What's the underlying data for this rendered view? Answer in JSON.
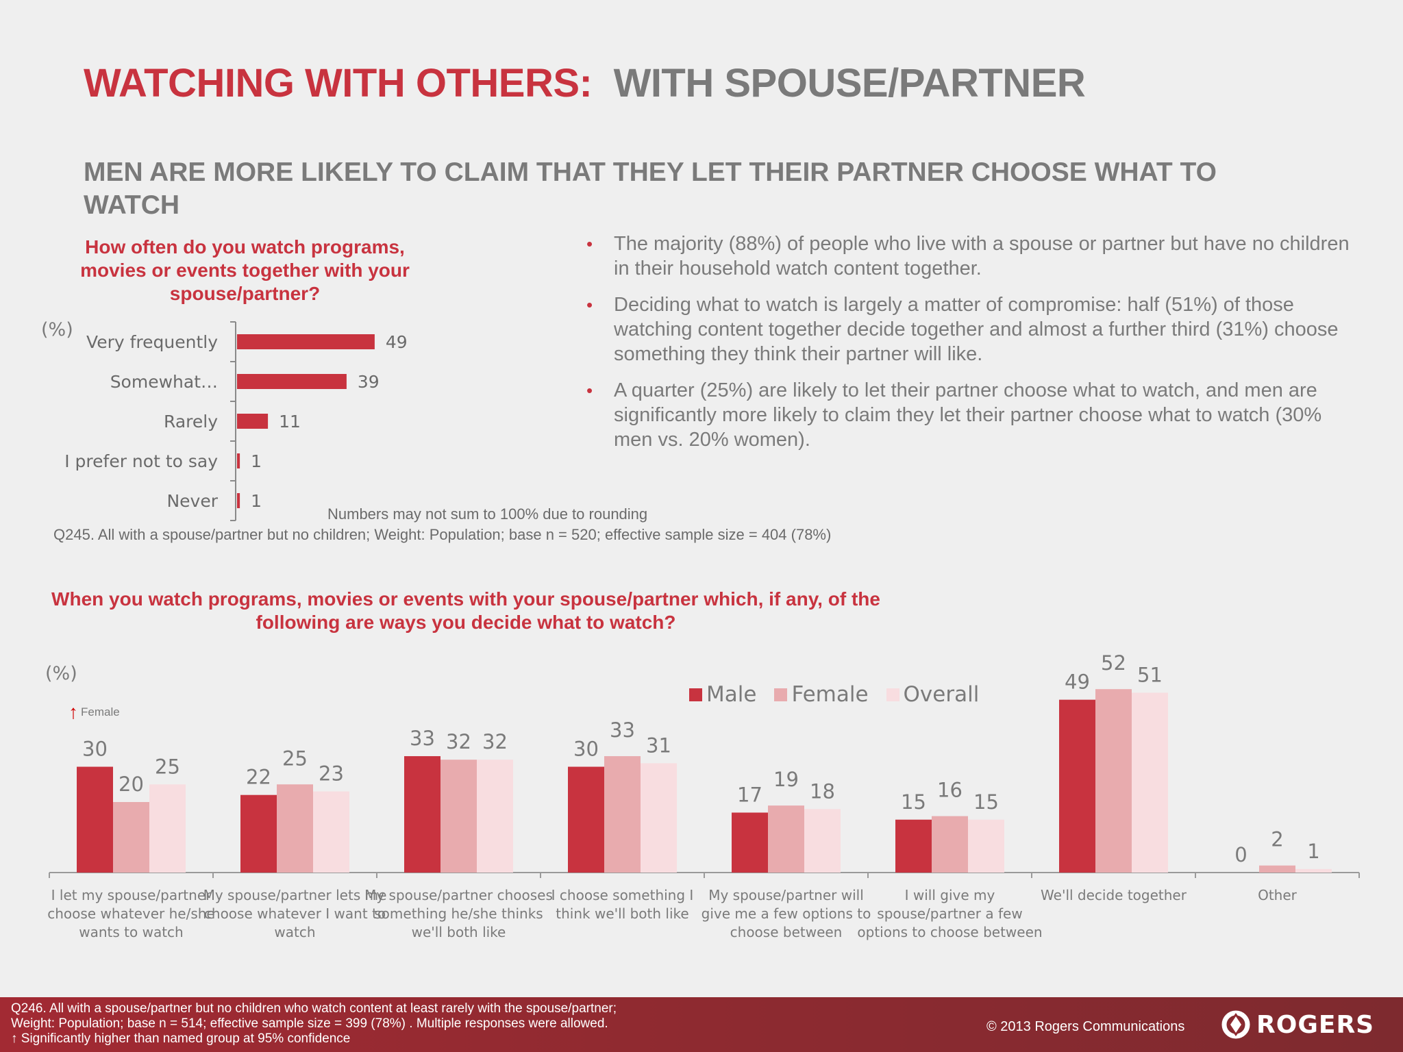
{
  "title": {
    "part1": "WATCHING WITH OTHERS:",
    "part2": "WITH SPOUSE/PARTNER"
  },
  "subtitle": "MEN ARE MORE LIKELY TO CLAIM THAT THEY LET THEIR PARTNER CHOOSE WHAT TO WATCH",
  "colors": {
    "brand_red": "#c8333f",
    "male": "#c8333f",
    "female": "#e8abae",
    "overall": "#f8dde0"
  },
  "chart1": {
    "question": "How often do you watch programs, movies or events together with your spouse/partner?",
    "unit_label": "(%)",
    "note": "Numbers may not sum to 100% due to rounding",
    "source": "Q245. All with a spouse/partner but no children; Weight: Population; base n = 520; effective sample size = 404 (78%)"
  },
  "bullets": [
    "The majority (88%) of people who live with a spouse or partner but have no children in their household watch content together.",
    "Deciding what to watch is largely a matter of compromise: half (51%) of those watching content together decide together and almost a further third (31%) choose something they think their partner will like.",
    "A quarter (25%) are likely to let their partner choose what to watch, and men are significantly more likely to claim they let their partner choose what to watch (30% men vs. 20% women)."
  ],
  "chart2": {
    "question": "When you watch programs, movies or events with your spouse/partner which, if any, of the following are ways you decide what to watch?",
    "unit_label": "(%)",
    "significance_label": "Female"
  },
  "chart_data": [
    {
      "type": "bar",
      "orientation": "horizontal",
      "categories": [
        "Very frequently",
        "Somewhat…",
        "Rarely",
        "I prefer not to say",
        "Never"
      ],
      "values": [
        49,
        39,
        11,
        1,
        1
      ],
      "ylabel": "(%)"
    },
    {
      "type": "bar",
      "orientation": "vertical",
      "ylabel": "(%)",
      "categories": [
        "I let my spouse/partner choose whatever he/she wants to watch",
        "My spouse/partner lets me choose whatever I want to watch",
        "My spouse/partner chooses something he/she thinks we'll both like",
        "I choose something I think we'll both like",
        "My spouse/partner will give me a few options to choose between",
        "I will give my spouse/partner a few options to choose between",
        "We'll decide together",
        "Other"
      ],
      "series": [
        {
          "name": "Male",
          "values": [
            30,
            22,
            33,
            30,
            17,
            15,
            49,
            0
          ]
        },
        {
          "name": "Female",
          "values": [
            20,
            25,
            32,
            33,
            19,
            16,
            52,
            2
          ]
        },
        {
          "name": "Overall",
          "values": [
            25,
            23,
            32,
            31,
            18,
            15,
            51,
            1
          ]
        }
      ],
      "legend": "top-right"
    }
  ],
  "footer": {
    "line1": "Q246. All with a spouse/partner but no children who watch content at least rarely with the spouse/partner;",
    "line2": "Weight: Population; base n = 514; effective sample size = 399 (78%) . Multiple responses were allowed.",
    "line3": "Significantly higher than named group at 95% confidence",
    "copyright": "© 2013 Rogers Communications",
    "logo_text": "ROGERS"
  }
}
